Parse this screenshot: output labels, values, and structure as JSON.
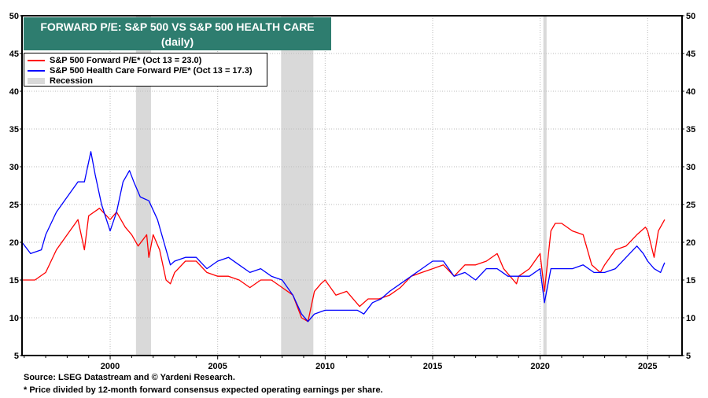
{
  "chart_data": {
    "type": "line",
    "title": "FORWARD P/E: S&P 500 VS S&P 500 HEALTH CARE",
    "subtitle": "(daily)",
    "xlabel": "",
    "ylabel": "",
    "xlim": [
      1995.9,
      2026.6
    ],
    "ylim": [
      5,
      50
    ],
    "x_ticks": [
      "2000",
      "2005",
      "2010",
      "2015",
      "2020",
      "2025"
    ],
    "y_ticks": [
      "5",
      "10",
      "15",
      "20",
      "25",
      "30",
      "35",
      "40",
      "45",
      "50"
    ],
    "grid": true,
    "legend_position": "top-left",
    "series": [
      {
        "name": "S&P 500 Forward P/E* (Oct 13 = 23.0)",
        "color": "#ff0000",
        "points": [
          [
            1995.9,
            15
          ],
          [
            1996.5,
            15
          ],
          [
            1997,
            16
          ],
          [
            1997.5,
            19
          ],
          [
            1998,
            21
          ],
          [
            1998.5,
            23
          ],
          [
            1998.8,
            19
          ],
          [
            1999,
            23.5
          ],
          [
            1999.5,
            24.5
          ],
          [
            2000,
            23
          ],
          [
            2000.3,
            24
          ],
          [
            2000.7,
            22
          ],
          [
            2001,
            21
          ],
          [
            2001.3,
            19.5
          ],
          [
            2001.7,
            21
          ],
          [
            2001.8,
            18
          ],
          [
            2002,
            21
          ],
          [
            2002.3,
            19
          ],
          [
            2002.6,
            15
          ],
          [
            2002.8,
            14.5
          ],
          [
            2003,
            16
          ],
          [
            2003.5,
            17.5
          ],
          [
            2004,
            17.5
          ],
          [
            2004.5,
            16
          ],
          [
            2005,
            15.5
          ],
          [
            2005.5,
            15.5
          ],
          [
            2006,
            15
          ],
          [
            2006.5,
            14
          ],
          [
            2007,
            15
          ],
          [
            2007.5,
            15
          ],
          [
            2008,
            14
          ],
          [
            2008.5,
            13
          ],
          [
            2008.9,
            10
          ],
          [
            2009.2,
            9.5
          ],
          [
            2009.5,
            13.5
          ],
          [
            2009.8,
            14.5
          ],
          [
            2010,
            15
          ],
          [
            2010.5,
            13
          ],
          [
            2011,
            13.5
          ],
          [
            2011.6,
            11.5
          ],
          [
            2012,
            12.5
          ],
          [
            2012.5,
            12.5
          ],
          [
            2013,
            13
          ],
          [
            2013.5,
            14
          ],
          [
            2014,
            15.5
          ],
          [
            2014.5,
            16
          ],
          [
            2015,
            16.5
          ],
          [
            2015.5,
            17
          ],
          [
            2016,
            15.5
          ],
          [
            2016.5,
            17
          ],
          [
            2017,
            17
          ],
          [
            2017.5,
            17.5
          ],
          [
            2018,
            18.5
          ],
          [
            2018.3,
            16.5
          ],
          [
            2018.9,
            14.5
          ],
          [
            2019,
            15.5
          ],
          [
            2019.5,
            16.5
          ],
          [
            2020,
            18.5
          ],
          [
            2020.2,
            13.5
          ],
          [
            2020.5,
            21.5
          ],
          [
            2020.7,
            22.5
          ],
          [
            2021,
            22.5
          ],
          [
            2021.5,
            21.5
          ],
          [
            2022,
            21
          ],
          [
            2022.4,
            17
          ],
          [
            2022.8,
            16
          ],
          [
            2023,
            17
          ],
          [
            2023.5,
            19
          ],
          [
            2024,
            19.5
          ],
          [
            2024.5,
            21
          ],
          [
            2024.9,
            22
          ],
          [
            2025,
            21.5
          ],
          [
            2025.3,
            18
          ],
          [
            2025.5,
            21.5
          ],
          [
            2025.79,
            23
          ]
        ]
      },
      {
        "name": "S&P 500 Health Care Forward P/E* (Oct 13 = 17.3)",
        "color": "#0000ff",
        "points": [
          [
            1995.9,
            20
          ],
          [
            1996.3,
            18.5
          ],
          [
            1996.8,
            19
          ],
          [
            1997,
            21
          ],
          [
            1997.5,
            24
          ],
          [
            1998,
            26
          ],
          [
            1998.5,
            28
          ],
          [
            1998.8,
            28
          ],
          [
            1999.1,
            32
          ],
          [
            1999.3,
            29
          ],
          [
            1999.6,
            25
          ],
          [
            2000,
            21.5
          ],
          [
            2000.3,
            24
          ],
          [
            2000.6,
            28
          ],
          [
            2000.9,
            29.5
          ],
          [
            2001.1,
            28
          ],
          [
            2001.4,
            26
          ],
          [
            2001.8,
            25.5
          ],
          [
            2002.2,
            23
          ],
          [
            2002.5,
            20
          ],
          [
            2002.8,
            17
          ],
          [
            2003,
            17.5
          ],
          [
            2003.5,
            18
          ],
          [
            2004,
            18
          ],
          [
            2004.5,
            16.5
          ],
          [
            2005,
            17.5
          ],
          [
            2005.5,
            18
          ],
          [
            2006,
            17
          ],
          [
            2006.5,
            16
          ],
          [
            2007,
            16.5
          ],
          [
            2007.5,
            15.5
          ],
          [
            2008,
            15
          ],
          [
            2008.5,
            13
          ],
          [
            2008.9,
            10.5
          ],
          [
            2009.2,
            9.5
          ],
          [
            2009.5,
            10.5
          ],
          [
            2010,
            11
          ],
          [
            2010.5,
            11
          ],
          [
            2011,
            11
          ],
          [
            2011.5,
            11
          ],
          [
            2011.8,
            10.5
          ],
          [
            2012.2,
            12
          ],
          [
            2012.6,
            12.5
          ],
          [
            2013,
            13.5
          ],
          [
            2013.5,
            14.5
          ],
          [
            2014,
            15.5
          ],
          [
            2014.5,
            16.5
          ],
          [
            2015,
            17.5
          ],
          [
            2015.5,
            17.5
          ],
          [
            2016,
            15.5
          ],
          [
            2016.5,
            16
          ],
          [
            2017,
            15
          ],
          [
            2017.5,
            16.5
          ],
          [
            2018,
            16.5
          ],
          [
            2018.5,
            15.5
          ],
          [
            2019,
            15.5
          ],
          [
            2019.5,
            15.5
          ],
          [
            2020,
            16.5
          ],
          [
            2020.2,
            12
          ],
          [
            2020.5,
            16.5
          ],
          [
            2021,
            16.5
          ],
          [
            2021.5,
            16.5
          ],
          [
            2022,
            17
          ],
          [
            2022.5,
            16
          ],
          [
            2023,
            16
          ],
          [
            2023.5,
            16.5
          ],
          [
            2024,
            18
          ],
          [
            2024.5,
            19.5
          ],
          [
            2024.8,
            18.5
          ],
          [
            2025,
            17.5
          ],
          [
            2025.3,
            16.5
          ],
          [
            2025.6,
            16
          ],
          [
            2025.79,
            17.3
          ]
        ]
      }
    ],
    "recessions": {
      "name": "Recession",
      "color": "#d9d9d9",
      "periods": [
        [
          2001.2,
          2001.9
        ],
        [
          2007.95,
          2009.45
        ],
        [
          2020.15,
          2020.3
        ]
      ]
    }
  },
  "footer": {
    "source": "Source: LSEG Datastream and © Yardeni Research.",
    "note": "* Price divided by 12-month forward consensus expected operating earnings per share."
  },
  "colors": {
    "title_bg": "#2e7d6f"
  }
}
